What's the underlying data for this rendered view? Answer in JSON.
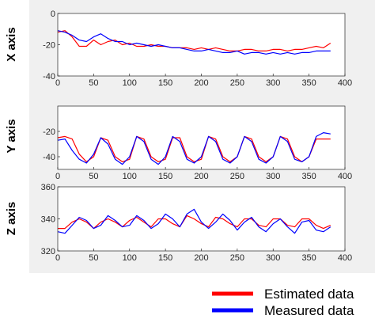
{
  "colors": {
    "estimated": "#ff0000",
    "measured": "#0000ff",
    "panel_bg": "#f0f0f0",
    "axes_bg": "#ffffff",
    "axis": "#262626"
  },
  "legend": {
    "placement": "bottom-right",
    "estimated_label": "Estimated data",
    "measured_label": "Measured data"
  },
  "chart_data": [
    {
      "type": "line",
      "ylabel": "X axis",
      "xlim": [
        0,
        400
      ],
      "ylim": [
        -40,
        0
      ],
      "xticks": [
        "0",
        "50",
        "100",
        "150",
        "200",
        "250",
        "300",
        "350",
        "400"
      ],
      "yticks": [
        "0",
        "-20",
        "-40"
      ],
      "x": [
        0,
        10,
        20,
        30,
        40,
        50,
        60,
        70,
        80,
        90,
        100,
        110,
        120,
        130,
        140,
        150,
        160,
        170,
        180,
        190,
        200,
        210,
        220,
        230,
        240,
        250,
        260,
        270,
        280,
        290,
        300,
        310,
        320,
        330,
        340,
        350,
        360,
        370,
        380
      ],
      "series": [
        {
          "name": "Estimated data",
          "values": [
            -12,
            -11,
            -15,
            -21,
            -21,
            -17,
            -20,
            -18,
            -17,
            -20,
            -19,
            -21,
            -21,
            -20,
            -21,
            -21,
            -22,
            -22,
            -22,
            -23,
            -22,
            -23,
            -22,
            -23,
            -24,
            -24,
            -23,
            -23,
            -24,
            -24,
            -23,
            -23,
            -24,
            -23,
            -23,
            -22,
            -21,
            -22,
            -19
          ]
        },
        {
          "name": "Measured data",
          "values": [
            -11,
            -12,
            -14,
            -17,
            -18,
            -15,
            -13,
            -16,
            -18,
            -18,
            -20,
            -19,
            -20,
            -21,
            -20,
            -21,
            -22,
            -22,
            -23,
            -24,
            -24,
            -23,
            -24,
            -25,
            -25,
            -24,
            -26,
            -25,
            -25,
            -26,
            -25,
            -26,
            -25,
            -26,
            -25,
            -25,
            -24,
            -24,
            -24
          ]
        }
      ]
    },
    {
      "type": "line",
      "ylabel": "Y axis",
      "xlim": [
        0,
        400
      ],
      "ylim": [
        -50,
        0
      ],
      "xticks": [
        "0",
        "50",
        "100",
        "150",
        "200",
        "250",
        "300",
        "350",
        "400"
      ],
      "yticks": [
        "-20",
        "-40"
      ],
      "x": [
        0,
        10,
        20,
        30,
        40,
        50,
        60,
        70,
        80,
        90,
        100,
        110,
        120,
        130,
        140,
        150,
        160,
        170,
        180,
        190,
        200,
        210,
        220,
        230,
        240,
        250,
        260,
        270,
        280,
        290,
        300,
        310,
        320,
        330,
        340,
        350,
        360,
        370,
        380
      ],
      "series": [
        {
          "name": "Estimated data",
          "values": [
            -25,
            -24,
            -26,
            -38,
            -44,
            -40,
            -25,
            -27,
            -40,
            -44,
            -42,
            -24,
            -26,
            -40,
            -44,
            -42,
            -25,
            -25,
            -40,
            -44,
            -42,
            -24,
            -26,
            -40,
            -44,
            -40,
            -24,
            -26,
            -40,
            -44,
            -40,
            -24,
            -26,
            -40,
            -44,
            -40,
            -26,
            -26,
            -26
          ]
        },
        {
          "name": "Measured data",
          "values": [
            -27,
            -26,
            -35,
            -42,
            -45,
            -38,
            -25,
            -30,
            -42,
            -46,
            -40,
            -24,
            -28,
            -42,
            -46,
            -40,
            -24,
            -28,
            -42,
            -45,
            -40,
            -24,
            -28,
            -42,
            -45,
            -40,
            -24,
            -28,
            -42,
            -45,
            -40,
            -24,
            -28,
            -42,
            -44,
            -40,
            -24,
            -21,
            -22
          ]
        }
      ]
    },
    {
      "type": "line",
      "ylabel": "Z axis",
      "xlim": [
        0,
        400
      ],
      "ylim": [
        320,
        360
      ],
      "xticks": [
        "0",
        "50",
        "100",
        "150",
        "200",
        "250",
        "300",
        "350",
        "400"
      ],
      "yticks": [
        "360",
        "340",
        "320"
      ],
      "x": [
        0,
        10,
        20,
        30,
        40,
        50,
        60,
        70,
        80,
        90,
        100,
        110,
        120,
        130,
        140,
        150,
        160,
        170,
        180,
        190,
        200,
        210,
        220,
        230,
        240,
        250,
        260,
        270,
        280,
        290,
        300,
        310,
        320,
        330,
        340,
        350,
        360,
        370,
        380
      ],
      "series": [
        {
          "name": "Estimated data",
          "values": [
            334,
            334,
            338,
            340,
            338,
            334,
            338,
            340,
            338,
            335,
            339,
            341,
            338,
            335,
            340,
            340,
            337,
            335,
            342,
            340,
            337,
            335,
            341,
            340,
            337,
            335,
            340,
            340,
            336,
            335,
            340,
            340,
            336,
            335,
            340,
            340,
            336,
            334,
            336
          ]
        },
        {
          "name": "Measured data",
          "values": [
            332,
            331,
            336,
            341,
            339,
            334,
            336,
            342,
            339,
            335,
            336,
            342,
            339,
            334,
            337,
            343,
            340,
            335,
            343,
            346,
            338,
            334,
            338,
            343,
            339,
            333,
            338,
            341,
            335,
            332,
            337,
            340,
            335,
            331,
            338,
            339,
            333,
            332,
            335
          ]
        }
      ]
    }
  ]
}
